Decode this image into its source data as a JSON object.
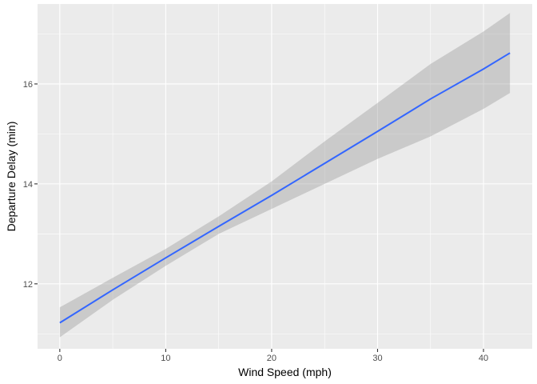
{
  "chart_data": {
    "type": "line",
    "title": "",
    "xlabel": "Wind Speed (mph)",
    "ylabel": "Departure Delay (min)",
    "xlim": [
      -2.1,
      44.6
    ],
    "ylim": [
      10.7,
      17.6
    ],
    "x_ticks": [
      0,
      10,
      20,
      30,
      40
    ],
    "y_ticks": [
      12,
      14,
      16
    ],
    "grid": true,
    "legend": "none",
    "series": [
      {
        "x": [
          0,
          5,
          10,
          15,
          20,
          25,
          30,
          35,
          40,
          42.5
        ],
        "y": [
          11.22,
          11.88,
          12.52,
          13.15,
          13.77,
          14.41,
          15.05,
          15.7,
          16.3,
          16.62
        ],
        "lower": [
          10.93,
          11.68,
          12.36,
          13.0,
          13.5,
          14.0,
          14.5,
          14.95,
          15.5,
          15.82
        ],
        "upper": [
          11.53,
          12.12,
          12.7,
          13.35,
          14.05,
          14.85,
          15.62,
          16.4,
          17.05,
          17.42
        ]
      }
    ],
    "colors": {
      "panel": "#ebebeb",
      "grid_major": "#ffffff",
      "ribbon": "#999999",
      "line": "#3366ff"
    }
  }
}
